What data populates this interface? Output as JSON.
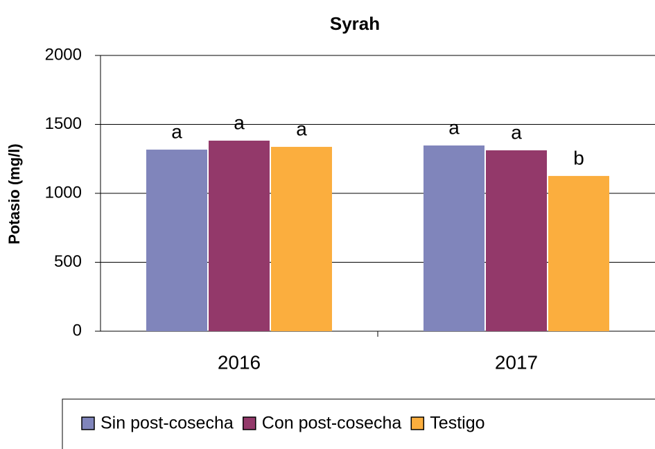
{
  "chart_data": {
    "type": "bar",
    "title": "Syrah",
    "y_label": "Potasio (mg/l)",
    "categories": [
      "2016",
      "2017"
    ],
    "series": [
      {
        "name": "Sin post-cosecha",
        "color": "#8085bb",
        "values": [
          1317,
          1347
        ],
        "letters": [
          "a",
          "a"
        ]
      },
      {
        "name": "Con post-cosecha",
        "color": "#93396a",
        "values": [
          1382,
          1312
        ],
        "letters": [
          "a",
          "a"
        ]
      },
      {
        "name": "Testigo",
        "color": "#fbae3e",
        "values": [
          1337,
          1126
        ],
        "letters": [
          "a",
          "b"
        ]
      }
    ],
    "ylim": [
      0,
      2000
    ],
    "yticks": [
      0,
      500,
      1000,
      1500,
      2000
    ],
    "grid": true,
    "legend": "bottom"
  }
}
